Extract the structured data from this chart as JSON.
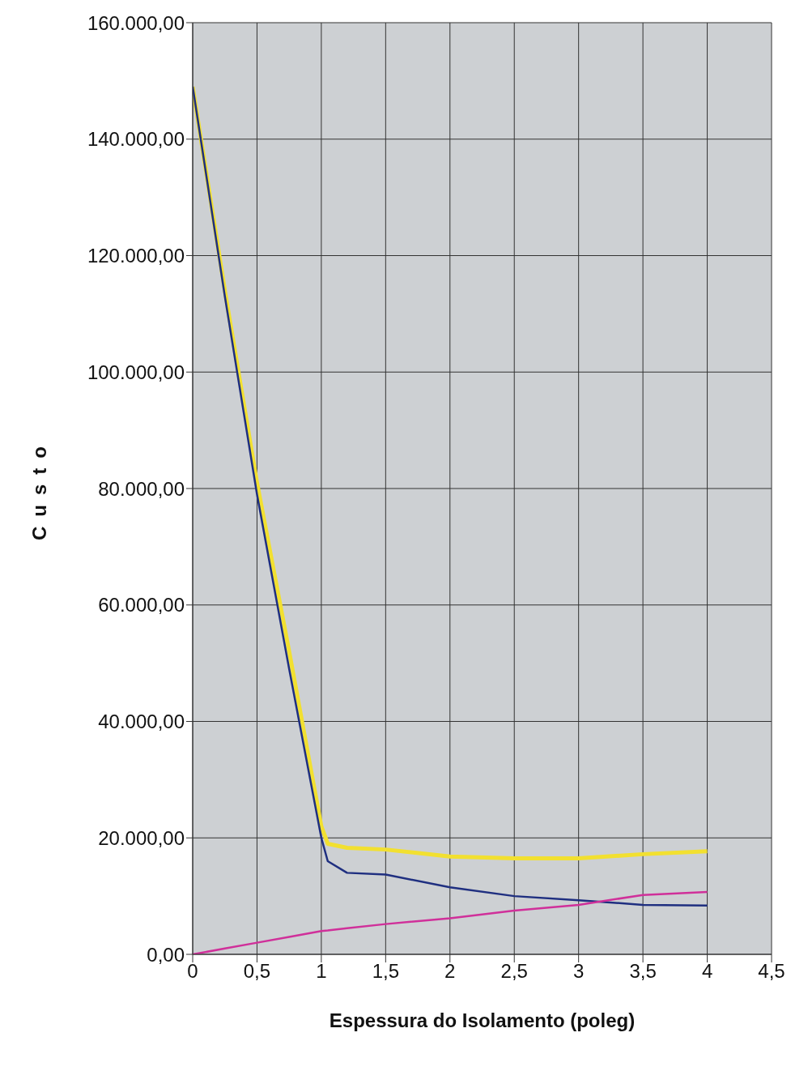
{
  "chart_data": {
    "type": "line",
    "xlabel": "Espessura do Isolamento (poleg)",
    "ylabel": "Custo",
    "x": [
      0,
      0.25,
      0.5,
      0.75,
      1,
      1.05,
      1.2,
      1.5,
      2,
      2.5,
      3,
      3.5,
      4
    ],
    "series": [
      {
        "color": "#f2e030",
        "values": [
          149000,
          114000,
          81000,
          52000,
          22000,
          19000,
          18300,
          18000,
          16800,
          16500,
          16500,
          17200,
          17700
        ]
      },
      {
        "color": "#1f2f80",
        "values": [
          149000,
          113000,
          79000,
          49000,
          20000,
          16000,
          14000,
          13700,
          11500,
          10000,
          9300,
          8500,
          8400
        ]
      },
      {
        "color": "#d0309a",
        "values": [
          0,
          1000,
          2000,
          3000,
          4000,
          4100,
          4500,
          5200,
          6200,
          7500,
          8500,
          10200,
          10700
        ]
      }
    ],
    "xlim": [
      0,
      4.5
    ],
    "xticks": [
      0,
      {
        "value": 0.5,
        "label": "0,5"
      },
      1,
      {
        "value": 1.5,
        "label": "1,5"
      },
      2,
      {
        "value": 2.5,
        "label": "2,5"
      },
      3,
      {
        "value": 3.5,
        "label": "3,5"
      },
      4,
      {
        "value": 4.5,
        "label": "4,5"
      }
    ],
    "ylim": [
      0,
      160000
    ],
    "yticks": [
      {
        "value": 0,
        "label": "0,00"
      },
      {
        "value": 20000,
        "label": "20.000,00"
      },
      {
        "value": 40000,
        "label": "40.000,00"
      },
      {
        "value": 60000,
        "label": "60.000,00"
      },
      {
        "value": 80000,
        "label": "80.000,00"
      },
      {
        "value": 100000,
        "label": "100.000,00"
      },
      {
        "value": 120000,
        "label": "120.000,00"
      },
      {
        "value": 140000,
        "label": "140.000,00"
      },
      {
        "value": 160000,
        "label": "160.000,00"
      }
    ],
    "grid": true,
    "legend": false,
    "marker": "none",
    "line_style": "solid"
  }
}
